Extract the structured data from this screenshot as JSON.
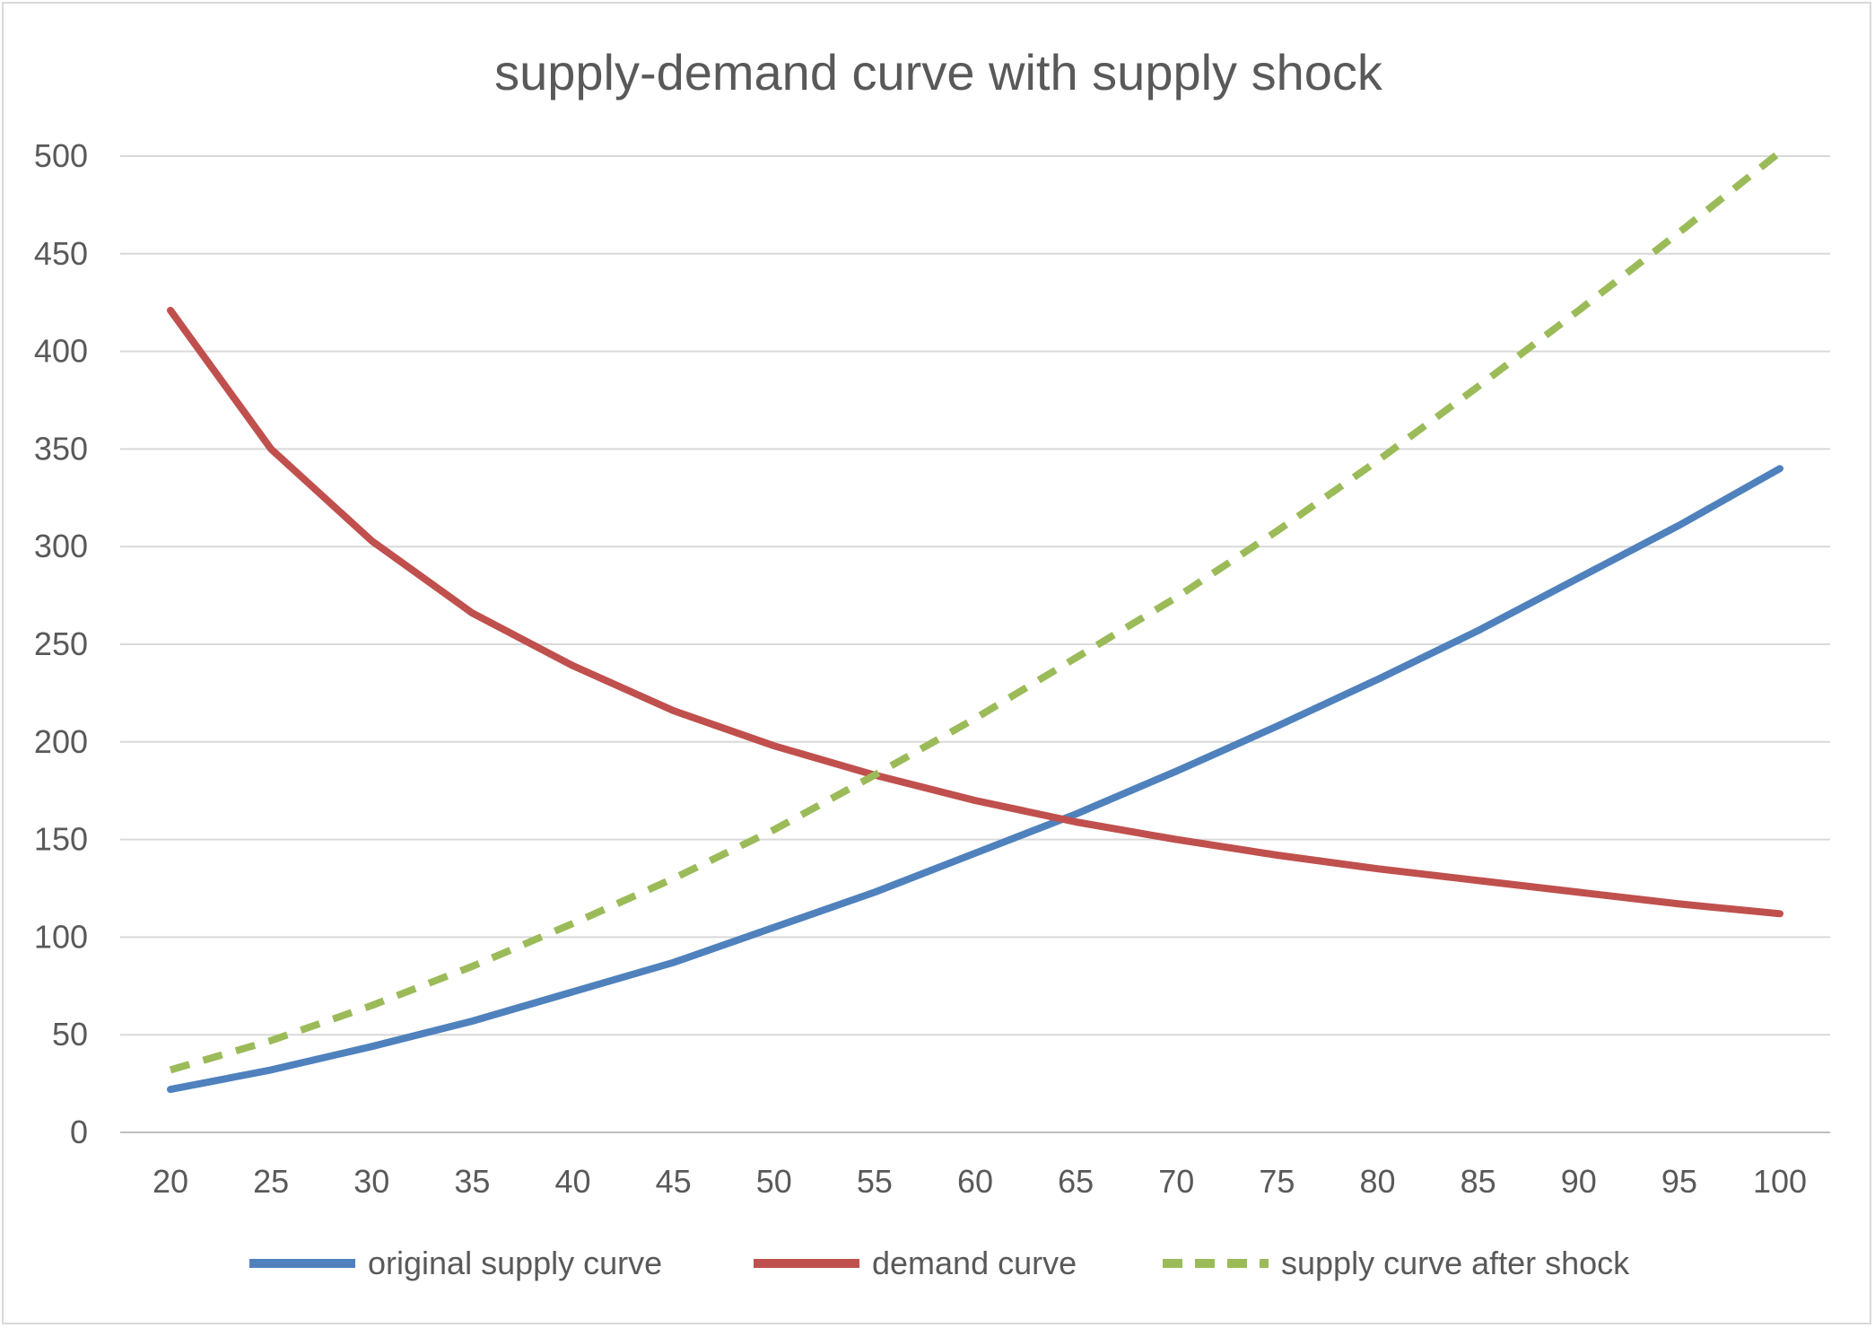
{
  "chart_data": {
    "type": "line",
    "title": "supply-demand curve with supply shock",
    "xlabel": "",
    "ylabel": "",
    "categories": [
      "20",
      "25",
      "30",
      "35",
      "40",
      "45",
      "50",
      "55",
      "60",
      "65",
      "70",
      "75",
      "80",
      "85",
      "90",
      "95",
      "100"
    ],
    "ylim": [
      0,
      500
    ],
    "yticks": [
      "0",
      "50",
      "100",
      "150",
      "200",
      "250",
      "300",
      "350",
      "400",
      "450",
      "500"
    ],
    "grid": true,
    "legend_position": "bottom",
    "series": [
      {
        "name": "original supply curve",
        "color": "#4f81bd",
        "dash": false,
        "values": [
          22,
          32,
          44,
          57,
          72,
          87,
          105,
          123,
          143,
          163,
          185,
          208,
          232,
          257,
          284,
          311,
          340
        ]
      },
      {
        "name": "demand curve",
        "color": "#c0504d",
        "dash": false,
        "values": [
          421,
          350,
          303,
          266,
          239,
          216,
          198,
          183,
          170,
          159,
          150,
          142,
          135,
          129,
          123,
          117,
          112
        ]
      },
      {
        "name": "supply curve after shock",
        "color": "#9bbb59",
        "dash": true,
        "values": [
          32,
          47,
          65,
          85,
          107,
          130,
          155,
          183,
          212,
          243,
          274,
          308,
          344,
          382,
          421,
          461,
          502
        ]
      }
    ]
  }
}
